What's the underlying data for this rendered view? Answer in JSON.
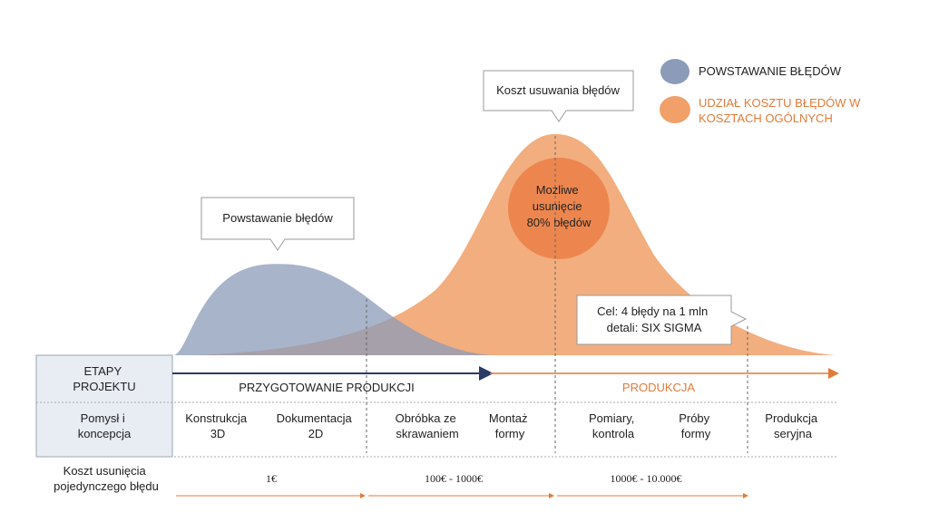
{
  "colors": {
    "blue_fill": "#8b9bb8",
    "orange_fill": "#f0a068",
    "orange_circle": "#ec7f45",
    "orange_text": "#e07b3a",
    "navy_arrow": "#2b3a66",
    "stage_box_fill": "#e8edf3",
    "callout_stroke": "#9a9a9a"
  },
  "legend": [
    {
      "icon": "blue-blob-icon",
      "label_lines": [
        "POWSTAWANIE BŁĘDÓW"
      ]
    },
    {
      "icon": "orange-blob-icon",
      "label_lines": [
        "UDZIAŁ KOSZTU BŁĘDÓW W",
        "KOSZTACH OGÓLNYCH"
      ]
    }
  ],
  "callouts": {
    "cost_removal": "Koszt usuwania błędów",
    "error_creation": "Powstawanie błędów",
    "six_sigma": [
      "Cel: 4 błędy na 1 mln",
      "detali: SIX SIGMA"
    ]
  },
  "circle_text": [
    "Możliwe",
    "usunięcie",
    "80% błędów"
  ],
  "rows": {
    "stages_header": [
      "ETAPY",
      "PROJEKTU"
    ],
    "phase_prep": "PRZYGOTOWANIE PRODUKCJI",
    "phase_prod": "PRODUKCJA",
    "steps": [
      [
        "Pomysł i",
        "koncepcja"
      ],
      [
        "Konstrukcja",
        "3D"
      ],
      [
        "Dokumentacja",
        "2D"
      ],
      [
        "Obróbka ze",
        "skrawaniem"
      ],
      [
        "Montaż",
        "formy"
      ],
      [
        "Pomiary,",
        "kontrola"
      ],
      [
        "Próby",
        "formy"
      ],
      [
        "Produkcja",
        "seryjna"
      ]
    ],
    "cost_header": [
      "Koszt usunięcia",
      "pojedynczego błędu"
    ],
    "costs": [
      "1€",
      "100€ - 1000€",
      "1000€ - 10.000€"
    ]
  }
}
